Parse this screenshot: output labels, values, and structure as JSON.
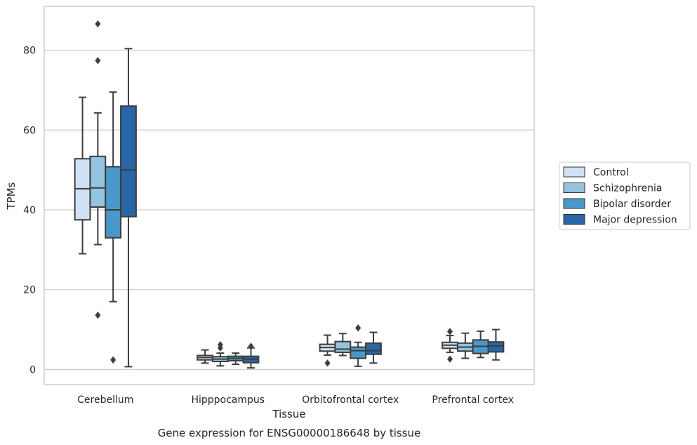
{
  "chart_data": {
    "type": "box",
    "title": "",
    "caption": "Gene expression for ENSG00000186648 by tissue",
    "xlabel": "Tissue",
    "ylabel": "TPMs",
    "ylim": [
      -3.8,
      91
    ],
    "yticks": [
      0,
      20,
      40,
      60,
      80
    ],
    "grid": "horizontal",
    "legend_position": "right",
    "categories": [
      "Cerebellum",
      "Hipppocampus",
      "Orbitofrontal cortex",
      "Prefrontal cortex"
    ],
    "series": [
      {
        "name": "Control",
        "color": "#cfe1f2",
        "boxes": [
          {
            "whisker_low": 29,
            "q1": 37.5,
            "median": 45.3,
            "q3": 52.8,
            "whisker_high": 68.2,
            "outliers": []
          },
          {
            "whisker_low": 1.6,
            "q1": 2.4,
            "median": 3.0,
            "q3": 3.5,
            "whisker_high": 4.9,
            "outliers": []
          },
          {
            "whisker_low": 3.6,
            "q1": 4.6,
            "median": 5.5,
            "q3": 6.3,
            "whisker_high": 8.6,
            "outliers": [
              1.6
            ]
          },
          {
            "whisker_low": 4.3,
            "q1": 5.3,
            "median": 6.1,
            "q3": 6.8,
            "whisker_high": 8.5,
            "outliers": [
              9.5,
              2.6
            ]
          }
        ]
      },
      {
        "name": "Schizophrenia",
        "color": "#94c4df",
        "boxes": [
          {
            "whisker_low": 31.3,
            "q1": 40.7,
            "median": 45.5,
            "q3": 53.4,
            "whisker_high": 64.3,
            "outliers": [
              86.6,
              77.4,
              13.6
            ]
          },
          {
            "whisker_low": 0.9,
            "q1": 2.0,
            "median": 2.6,
            "q3": 3.2,
            "whisker_high": 4.1,
            "outliers": [
              6.2,
              5.4
            ]
          },
          {
            "whisker_low": 3.5,
            "q1": 4.3,
            "median": 5.1,
            "q3": 7.0,
            "whisker_high": 9.0,
            "outliers": []
          },
          {
            "whisker_low": 2.8,
            "q1": 4.6,
            "median": 5.6,
            "q3": 6.6,
            "whisker_high": 9.1,
            "outliers": []
          }
        ]
      },
      {
        "name": "Bipolar disorder",
        "color": "#4a98c9",
        "boxes": [
          {
            "whisker_low": 17,
            "q1": 33,
            "median": 40,
            "q3": 50.8,
            "whisker_high": 69.5,
            "outliers": [
              2.4
            ]
          },
          {
            "whisker_low": 1.3,
            "q1": 2.2,
            "median": 2.8,
            "q3": 3.3,
            "whisker_high": 4.1,
            "outliers": []
          },
          {
            "whisker_low": 0.8,
            "q1": 2.8,
            "median": 4.7,
            "q3": 5.6,
            "whisker_high": 6.8,
            "outliers": [
              10.4
            ]
          },
          {
            "whisker_low": 3.0,
            "q1": 4.0,
            "median": 5.8,
            "q3": 7.4,
            "whisker_high": 9.6,
            "outliers": []
          }
        ]
      },
      {
        "name": "Major depression",
        "color": "#2866a8",
        "boxes": [
          {
            "whisker_low": 0.7,
            "q1": 38.3,
            "median": 50,
            "q3": 66,
            "whisker_high": 80.4,
            "outliers": []
          },
          {
            "whisker_low": 0.4,
            "q1": 1.7,
            "median": 2.6,
            "q3": 3.3,
            "whisker_high": 5.4,
            "outliers": [
              5.8
            ]
          },
          {
            "whisker_low": 1.6,
            "q1": 3.8,
            "median": 4.7,
            "q3": 6.6,
            "whisker_high": 9.3,
            "outliers": []
          },
          {
            "whisker_low": 2.4,
            "q1": 4.4,
            "median": 5.9,
            "q3": 6.9,
            "whisker_high": 10.0,
            "outliers": []
          }
        ]
      }
    ]
  }
}
